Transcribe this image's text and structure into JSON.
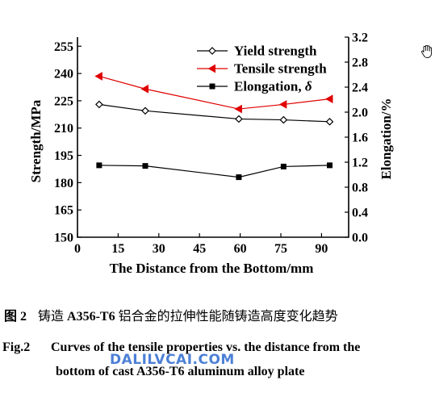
{
  "chart_data": {
    "type": "line",
    "x": [
      8,
      25,
      59.5,
      76,
      93
    ],
    "xlabel": "The Distance from the Bottom/mm",
    "xlim": [
      0,
      100
    ],
    "xticks": [
      "0",
      "15",
      "30",
      "45",
      "60",
      "75",
      "90"
    ],
    "ylabel_left": "Strength/MPa",
    "ylim_left": [
      150,
      260
    ],
    "yticks_left": [
      "150",
      "165",
      "180",
      "195",
      "210",
      "225",
      "240",
      "255"
    ],
    "ylabel_right": "Elongation/%",
    "ylim_right": [
      0.0,
      3.2
    ],
    "yticks_right": [
      "0.0",
      "0.4",
      "0.8",
      "1.2",
      "1.6",
      "2.0",
      "2.4",
      "2.8",
      "3.2"
    ],
    "series": [
      {
        "name": "Yield strength",
        "axis": "left",
        "marker": "diamond",
        "color": "#000000",
        "values": [
          223,
          219.5,
          215,
          214.5,
          213.5
        ]
      },
      {
        "name": "Tensile strength",
        "axis": "left",
        "marker": "triangle-left",
        "color": "#e00000",
        "values": [
          238.5,
          231.5,
          220.5,
          223,
          226
        ]
      },
      {
        "name": "Elongation, ",
        "name_symbol": "δ",
        "axis": "right",
        "marker": "square",
        "color": "#000000",
        "values": [
          1.15,
          1.14,
          0.96,
          1.13,
          1.15
        ]
      }
    ],
    "legend_position": "top-right"
  },
  "caption": {
    "cn_label": "图 2",
    "cn_prefix": "铸造 ",
    "cn_latin": "A356-T6",
    "cn_suffix": " 铝合金的拉伸性能随铸造高度变化趋势",
    "en_label": "Fig.2",
    "en_line1": "Curves of the tensile properties vs. the distance from the",
    "en_line2": "bottom of cast A356-T6 aluminum alloy plate"
  },
  "watermark": "DALILVCAI.COM"
}
